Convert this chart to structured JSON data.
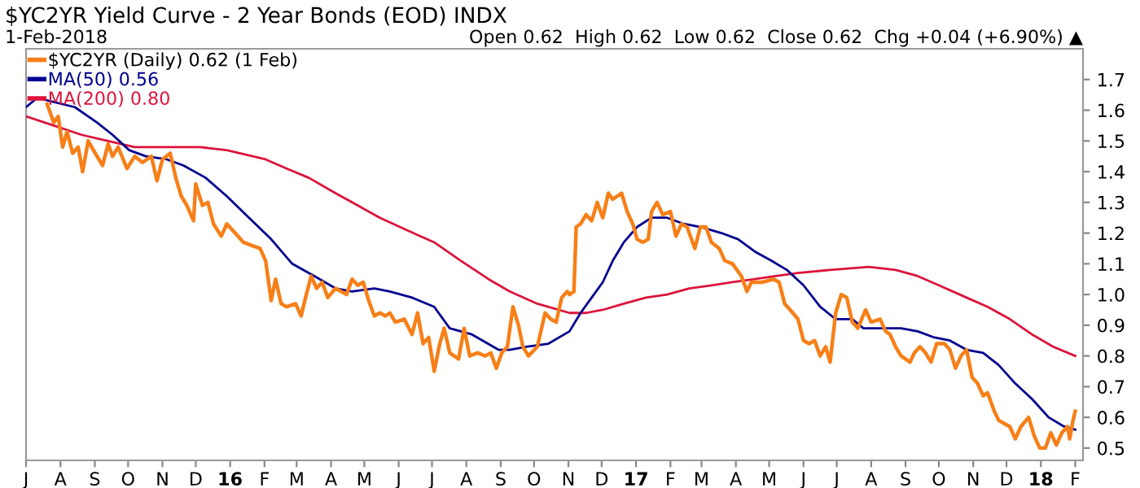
{
  "chart_data": {
    "type": "line",
    "title": "$YC2YR Yield Curve - 2 Year Bonds (EOD) INDX",
    "subtitle": "1-Feb-2018",
    "annotations": [
      "Open 0.62  High 0.62  Low 0.62  Close 0.62  Chg +0.04 (+6.90%) ▲"
    ],
    "xlim": [
      "2015-07-01",
      "2018-02-08"
    ],
    "ylim": [
      0.46,
      1.8
    ],
    "xticks": [
      {
        "value": "2015-07-01",
        "label": "J"
      },
      {
        "value": "2015-08-01",
        "label": "A"
      },
      {
        "value": "2015-09-01",
        "label": "S"
      },
      {
        "value": "2015-10-01",
        "label": "O"
      },
      {
        "value": "2015-11-01",
        "label": "N"
      },
      {
        "value": "2015-12-01",
        "label": "D"
      },
      {
        "value": "2016-01-01",
        "label": "16"
      },
      {
        "value": "2016-02-01",
        "label": "F"
      },
      {
        "value": "2016-03-01",
        "label": "M"
      },
      {
        "value": "2016-04-01",
        "label": "A"
      },
      {
        "value": "2016-05-01",
        "label": "M"
      },
      {
        "value": "2016-06-01",
        "label": "J"
      },
      {
        "value": "2016-07-01",
        "label": "J"
      },
      {
        "value": "2016-08-01",
        "label": "A"
      },
      {
        "value": "2016-09-01",
        "label": "S"
      },
      {
        "value": "2016-10-01",
        "label": "O"
      },
      {
        "value": "2016-11-01",
        "label": "N"
      },
      {
        "value": "2016-12-01",
        "label": "D"
      },
      {
        "value": "2017-01-01",
        "label": "17"
      },
      {
        "value": "2017-02-01",
        "label": "F"
      },
      {
        "value": "2017-03-01",
        "label": "M"
      },
      {
        "value": "2017-04-01",
        "label": "A"
      },
      {
        "value": "2017-05-01",
        "label": "M"
      },
      {
        "value": "2017-06-01",
        "label": "J"
      },
      {
        "value": "2017-07-01",
        "label": "J"
      },
      {
        "value": "2017-08-01",
        "label": "A"
      },
      {
        "value": "2017-09-01",
        "label": "S"
      },
      {
        "value": "2017-10-01",
        "label": "O"
      },
      {
        "value": "2017-11-01",
        "label": "N"
      },
      {
        "value": "2017-12-01",
        "label": "D"
      },
      {
        "value": "2018-01-01",
        "label": "18"
      },
      {
        "value": "2018-02-01",
        "label": "F"
      }
    ],
    "yticks": [
      0.5,
      0.6,
      0.7,
      0.8,
      0.9,
      {
        "value": 1.0,
        "label": "1.0"
      },
      1.1,
      1.2,
      1.3,
      1.4,
      1.5,
      1.6,
      1.7
    ],
    "grid": false,
    "legend": "top left",
    "marker": "none",
    "line_style": "solid",
    "series": [
      {
        "name": "$YC2YR (Daily) 0.62 (1 Feb)",
        "color": "#f77f17",
        "x": [
          "2015-07-20",
          "2015-07-26",
          "2015-07-30",
          "2015-08-03",
          "2015-08-07",
          "2015-08-12",
          "2015-08-17",
          "2015-08-21",
          "2015-08-26",
          "2015-09-03",
          "2015-09-08",
          "2015-09-13",
          "2015-09-17",
          "2015-09-22",
          "2015-09-30",
          "2015-10-07",
          "2015-10-14",
          "2015-10-22",
          "2015-10-27",
          "2015-11-01",
          "2015-11-08",
          "2015-11-13",
          "2015-11-18",
          "2015-11-23",
          "2015-11-29",
          "2015-12-01",
          "2015-12-07",
          "2015-12-12",
          "2015-12-17",
          "2015-12-24",
          "2015-12-29",
          "2016-01-03",
          "2016-01-08",
          "2016-01-13",
          "2016-01-20",
          "2016-01-28",
          "2016-02-02",
          "2016-02-07",
          "2016-02-11",
          "2016-02-16",
          "2016-02-21",
          "2016-02-29",
          "2016-03-05",
          "2016-03-09",
          "2016-03-14",
          "2016-03-19",
          "2016-03-24",
          "2016-03-29",
          "2016-04-05",
          "2016-04-15",
          "2016-04-20",
          "2016-04-25",
          "2016-04-30",
          "2016-05-05",
          "2016-05-10",
          "2016-05-15",
          "2016-05-20",
          "2016-05-24",
          "2016-05-29",
          "2016-06-06",
          "2016-06-13",
          "2016-06-18",
          "2016-06-23",
          "2016-06-28",
          "2016-07-03",
          "2016-07-08",
          "2016-07-12",
          "2016-07-17",
          "2016-07-25",
          "2016-07-30",
          "2016-08-04",
          "2016-08-11",
          "2016-08-18",
          "2016-08-23",
          "2016-08-28",
          "2016-09-02",
          "2016-09-07",
          "2016-09-12",
          "2016-09-17",
          "2016-09-21",
          "2016-09-26",
          "2016-10-04",
          "2016-10-11",
          "2016-10-16",
          "2016-10-21",
          "2016-10-26",
          "2016-10-31",
          "2016-11-02",
          "2016-11-06",
          "2016-11-08",
          "2016-11-12",
          "2016-11-17",
          "2016-11-22",
          "2016-11-27",
          "2016-12-02",
          "2016-12-07",
          "2016-12-11",
          "2016-12-19",
          "2016-12-24",
          "2016-12-29",
          "2017-01-02",
          "2017-01-07",
          "2017-01-12",
          "2017-01-15",
          "2017-01-20",
          "2017-01-25",
          "2017-02-01",
          "2017-02-06",
          "2017-02-11",
          "2017-02-16",
          "2017-02-23",
          "2017-02-28",
          "2017-03-05",
          "2017-03-10",
          "2017-03-17",
          "2017-03-22",
          "2017-03-29",
          "2017-04-06",
          "2017-04-11",
          "2017-04-15",
          "2017-04-25",
          "2017-05-05",
          "2017-05-10",
          "2017-05-15",
          "2017-05-20",
          "2017-05-27",
          "2017-06-01",
          "2017-06-06",
          "2017-06-11",
          "2017-06-16",
          "2017-06-21",
          "2017-06-25",
          "2017-06-30",
          "2017-07-05",
          "2017-07-10",
          "2017-07-15",
          "2017-07-20",
          "2017-07-27",
          "2017-08-01",
          "2017-08-09",
          "2017-08-14",
          "2017-08-18",
          "2017-08-23",
          "2017-08-28",
          "2017-09-05",
          "2017-09-09",
          "2017-09-14",
          "2017-09-19",
          "2017-09-24",
          "2017-09-29",
          "2017-10-06",
          "2017-10-11",
          "2017-10-16",
          "2017-10-21",
          "2017-10-26",
          "2017-10-31",
          "2017-11-05",
          "2017-11-10",
          "2017-11-14",
          "2017-11-20",
          "2017-11-24",
          "2017-11-29",
          "2017-12-04",
          "2017-12-09",
          "2017-12-14",
          "2017-12-21",
          "2017-12-26",
          "2017-12-31",
          "2018-01-05",
          "2018-01-10",
          "2018-01-15",
          "2018-01-20",
          "2018-01-25",
          "2018-01-27",
          "2018-01-30",
          "2018-02-01"
        ],
        "values": [
          1.62,
          1.56,
          1.58,
          1.48,
          1.53,
          1.46,
          1.48,
          1.4,
          1.5,
          1.45,
          1.42,
          1.49,
          1.45,
          1.48,
          1.41,
          1.45,
          1.43,
          1.45,
          1.37,
          1.44,
          1.46,
          1.38,
          1.32,
          1.29,
          1.24,
          1.36,
          1.29,
          1.3,
          1.23,
          1.19,
          1.23,
          1.21,
          1.19,
          1.17,
          1.16,
          1.15,
          1.11,
          0.98,
          1.05,
          0.97,
          0.96,
          0.97,
          0.93,
          0.99,
          1.06,
          1.02,
          1.04,
          0.99,
          1.02,
          1.0,
          1.05,
          1.03,
          1.04,
          0.98,
          0.93,
          0.94,
          0.93,
          0.94,
          0.91,
          0.92,
          0.87,
          0.94,
          0.84,
          0.86,
          0.75,
          0.84,
          0.89,
          0.81,
          0.79,
          0.89,
          0.8,
          0.81,
          0.8,
          0.81,
          0.76,
          0.81,
          0.83,
          0.96,
          0.9,
          0.83,
          0.8,
          0.83,
          0.94,
          0.92,
          0.91,
          0.99,
          1.01,
          1.0,
          1.01,
          1.22,
          1.23,
          1.26,
          1.24,
          1.3,
          1.25,
          1.33,
          1.31,
          1.33,
          1.27,
          1.23,
          1.18,
          1.17,
          1.18,
          1.27,
          1.3,
          1.26,
          1.27,
          1.19,
          1.23,
          1.22,
          1.15,
          1.22,
          1.22,
          1.17,
          1.15,
          1.11,
          1.1,
          1.06,
          1.01,
          1.04,
          1.04,
          1.05,
          1.04,
          0.97,
          0.95,
          0.92,
          0.85,
          0.84,
          0.85,
          0.8,
          0.83,
          0.78,
          0.94,
          1.0,
          0.99,
          0.91,
          0.89,
          0.95,
          0.91,
          0.92,
          0.88,
          0.87,
          0.83,
          0.8,
          0.78,
          0.81,
          0.83,
          0.81,
          0.78,
          0.84,
          0.84,
          0.82,
          0.76,
          0.8,
          0.82,
          0.73,
          0.71,
          0.67,
          0.68,
          0.62,
          0.59,
          0.58,
          0.57,
          0.53,
          0.57,
          0.6,
          0.54,
          0.5,
          0.5,
          0.55,
          0.51,
          0.55,
          0.57,
          0.53,
          0.59,
          0.62
        ]
      },
      {
        "name": "MA(50) 0.56",
        "color": "#000090",
        "x": [
          "2015-07-01",
          "2015-07-11",
          "2015-08-14",
          "2015-09-03",
          "2015-09-17",
          "2015-10-02",
          "2015-10-17",
          "2015-11-05",
          "2015-11-20",
          "2015-12-10",
          "2015-12-29",
          "2016-01-18",
          "2016-02-07",
          "2016-02-26",
          "2016-03-17",
          "2016-04-05",
          "2016-04-20",
          "2016-05-10",
          "2016-05-24",
          "2016-06-13",
          "2016-07-03",
          "2016-07-17",
          "2016-08-06",
          "2016-08-30",
          "2016-09-09",
          "2016-09-24",
          "2016-10-14",
          "2016-11-02",
          "2016-11-12",
          "2016-11-22",
          "2016-12-02",
          "2016-12-11",
          "2016-12-21",
          "2017-01-02",
          "2017-01-15",
          "2017-01-29",
          "2017-02-13",
          "2017-02-28",
          "2017-03-19",
          "2017-04-03",
          "2017-04-18",
          "2017-05-03",
          "2017-05-17",
          "2017-06-01",
          "2017-06-16",
          "2017-06-30",
          "2017-07-15",
          "2017-07-25",
          "2017-08-14",
          "2017-08-28",
          "2017-09-12",
          "2017-09-27",
          "2017-10-11",
          "2017-10-26",
          "2017-11-10",
          "2017-11-24",
          "2017-12-09",
          "2017-12-24",
          "2018-01-08",
          "2018-01-22",
          "2018-02-01"
        ],
        "values": [
          1.61,
          1.64,
          1.61,
          1.56,
          1.52,
          1.47,
          1.45,
          1.44,
          1.42,
          1.38,
          1.32,
          1.25,
          1.18,
          1.1,
          1.06,
          1.02,
          1.01,
          1.02,
          1.01,
          0.99,
          0.96,
          0.89,
          0.87,
          0.82,
          0.82,
          0.83,
          0.84,
          0.88,
          0.94,
          0.99,
          1.04,
          1.11,
          1.17,
          1.22,
          1.25,
          1.25,
          1.23,
          1.22,
          1.2,
          1.18,
          1.14,
          1.11,
          1.08,
          1.03,
          0.96,
          0.92,
          0.92,
          0.89,
          0.89,
          0.89,
          0.88,
          0.86,
          0.85,
          0.82,
          0.81,
          0.77,
          0.71,
          0.66,
          0.6,
          0.57,
          0.56
        ]
      },
      {
        "name": "MA(200) 0.80",
        "color": "#dc143c",
        "x": [
          "2015-07-01",
          "2015-07-26",
          "2015-08-20",
          "2015-09-13",
          "2015-10-07",
          "2015-11-05",
          "2015-12-05",
          "2015-12-29",
          "2016-02-02",
          "2016-02-21",
          "2016-03-12",
          "2016-04-05",
          "2016-04-25",
          "2016-05-15",
          "2016-06-08",
          "2016-07-03",
          "2016-07-27",
          "2016-08-21",
          "2016-09-09",
          "2016-10-04",
          "2016-11-02",
          "2016-11-17",
          "2016-12-02",
          "2016-12-21",
          "2017-01-10",
          "2017-01-29",
          "2017-02-18",
          "2017-03-10",
          "2017-03-29",
          "2017-04-18",
          "2017-05-07",
          "2017-05-27",
          "2017-06-25",
          "2017-07-30",
          "2017-08-23",
          "2017-09-12",
          "2017-10-01",
          "2017-10-26",
          "2017-11-14",
          "2017-12-04",
          "2017-12-24",
          "2018-01-12",
          "2018-02-01"
        ],
        "values": [
          1.58,
          1.55,
          1.52,
          1.5,
          1.48,
          1.48,
          1.48,
          1.47,
          1.44,
          1.41,
          1.38,
          1.33,
          1.29,
          1.25,
          1.21,
          1.17,
          1.11,
          1.05,
          1.01,
          0.97,
          0.94,
          0.94,
          0.95,
          0.97,
          0.99,
          1.0,
          1.02,
          1.03,
          1.04,
          1.05,
          1.06,
          1.07,
          1.08,
          1.09,
          1.08,
          1.06,
          1.03,
          0.99,
          0.96,
          0.92,
          0.87,
          0.83,
          0.8
        ]
      }
    ]
  }
}
